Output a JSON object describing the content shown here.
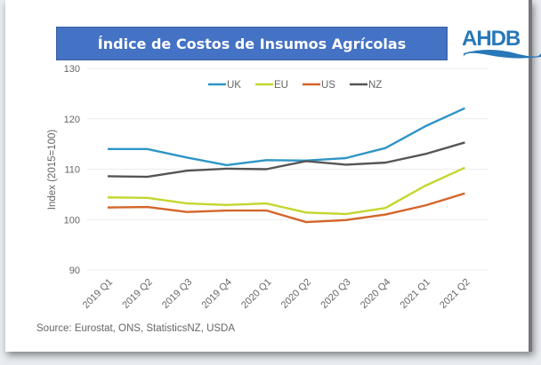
{
  "title": "Índice de Costos de Insumos Agrícolas",
  "logo_text": "AHDB",
  "source": "Source: Eurostat, ONS, StatisticsNZ, USDA",
  "chart_data": {
    "type": "line",
    "title": "Índice de Costos de Insumos Agrícolas",
    "xlabel": "",
    "ylabel": "Index (2015=100)",
    "ylim": [
      90,
      130
    ],
    "yticks": [
      90,
      100,
      110,
      120,
      130
    ],
    "grid": true,
    "legend": "top-center",
    "categories": [
      "2019 Q1",
      "2019 Q2",
      "2019 Q3",
      "2019 Q4",
      "2020 Q1",
      "2020 Q2",
      "2020 Q3",
      "2020 Q4",
      "2021 Q1",
      "2021 Q2"
    ],
    "series": [
      {
        "name": "UK",
        "color": "#2e95c6",
        "values": [
          114.0,
          114.0,
          112.3,
          110.8,
          111.8,
          111.7,
          112.2,
          114.2,
          118.5,
          122.1
        ]
      },
      {
        "name": "EU",
        "color": "#c5d62e",
        "values": [
          104.4,
          104.3,
          103.2,
          102.9,
          103.2,
          101.4,
          101.1,
          102.3,
          106.7,
          110.3
        ]
      },
      {
        "name": "US",
        "color": "#d4652a",
        "values": [
          102.4,
          102.5,
          101.5,
          101.8,
          101.8,
          99.5,
          99.9,
          101.0,
          102.8,
          105.2
        ]
      },
      {
        "name": "NZ",
        "color": "#555555",
        "values": [
          108.6,
          108.5,
          109.7,
          110.1,
          110.0,
          111.6,
          110.9,
          111.3,
          113.0,
          115.3
        ]
      }
    ]
  }
}
